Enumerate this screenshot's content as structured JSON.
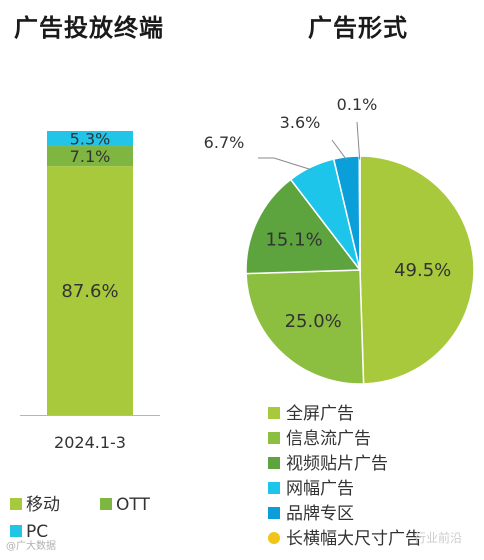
{
  "titles": {
    "left": "广告投放终端",
    "right": "广告形式"
  },
  "colors": {
    "mobile": "#a8c93b",
    "ott": "#7fb541",
    "pc": "#22c5e8",
    "full_screen": "#a8c93b",
    "feed": "#8cbf3f",
    "video_patch": "#5da43f",
    "banner": "#1ec5ea",
    "brand_zone": "#0a9fd8",
    "long_banner": "#f0c419"
  },
  "watermark": "@广大数据",
  "watermark2": "行业前沿",
  "chart_data": [
    {
      "type": "bar",
      "stacked": true,
      "categories": [
        "2024.1-3"
      ],
      "series": [
        {
          "name": "移动",
          "values": [
            87.6
          ],
          "label": "87.6%"
        },
        {
          "name": "OTT",
          "values": [
            7.1
          ],
          "label": "7.1%"
        },
        {
          "name": "PC",
          "values": [
            5.3
          ],
          "label": "5.3%"
        }
      ],
      "ylim": [
        0,
        100
      ],
      "legend": "bottom"
    },
    {
      "type": "pie",
      "slices": [
        {
          "name": "全屏广告",
          "value": 49.5,
          "label": "49.5%"
        },
        {
          "name": "信息流广告",
          "value": 25.0,
          "label": "25.0%"
        },
        {
          "name": "视频贴片广告",
          "value": 15.1,
          "label": "15.1%"
        },
        {
          "name": "网幅广告",
          "value": 6.7,
          "label": "6.7%"
        },
        {
          "name": "品牌专区",
          "value": 3.6,
          "label": "3.6%"
        },
        {
          "name": "长横幅大尺寸广告",
          "value": 0.1,
          "label": "0.1%"
        }
      ],
      "legend": "bottom"
    }
  ]
}
